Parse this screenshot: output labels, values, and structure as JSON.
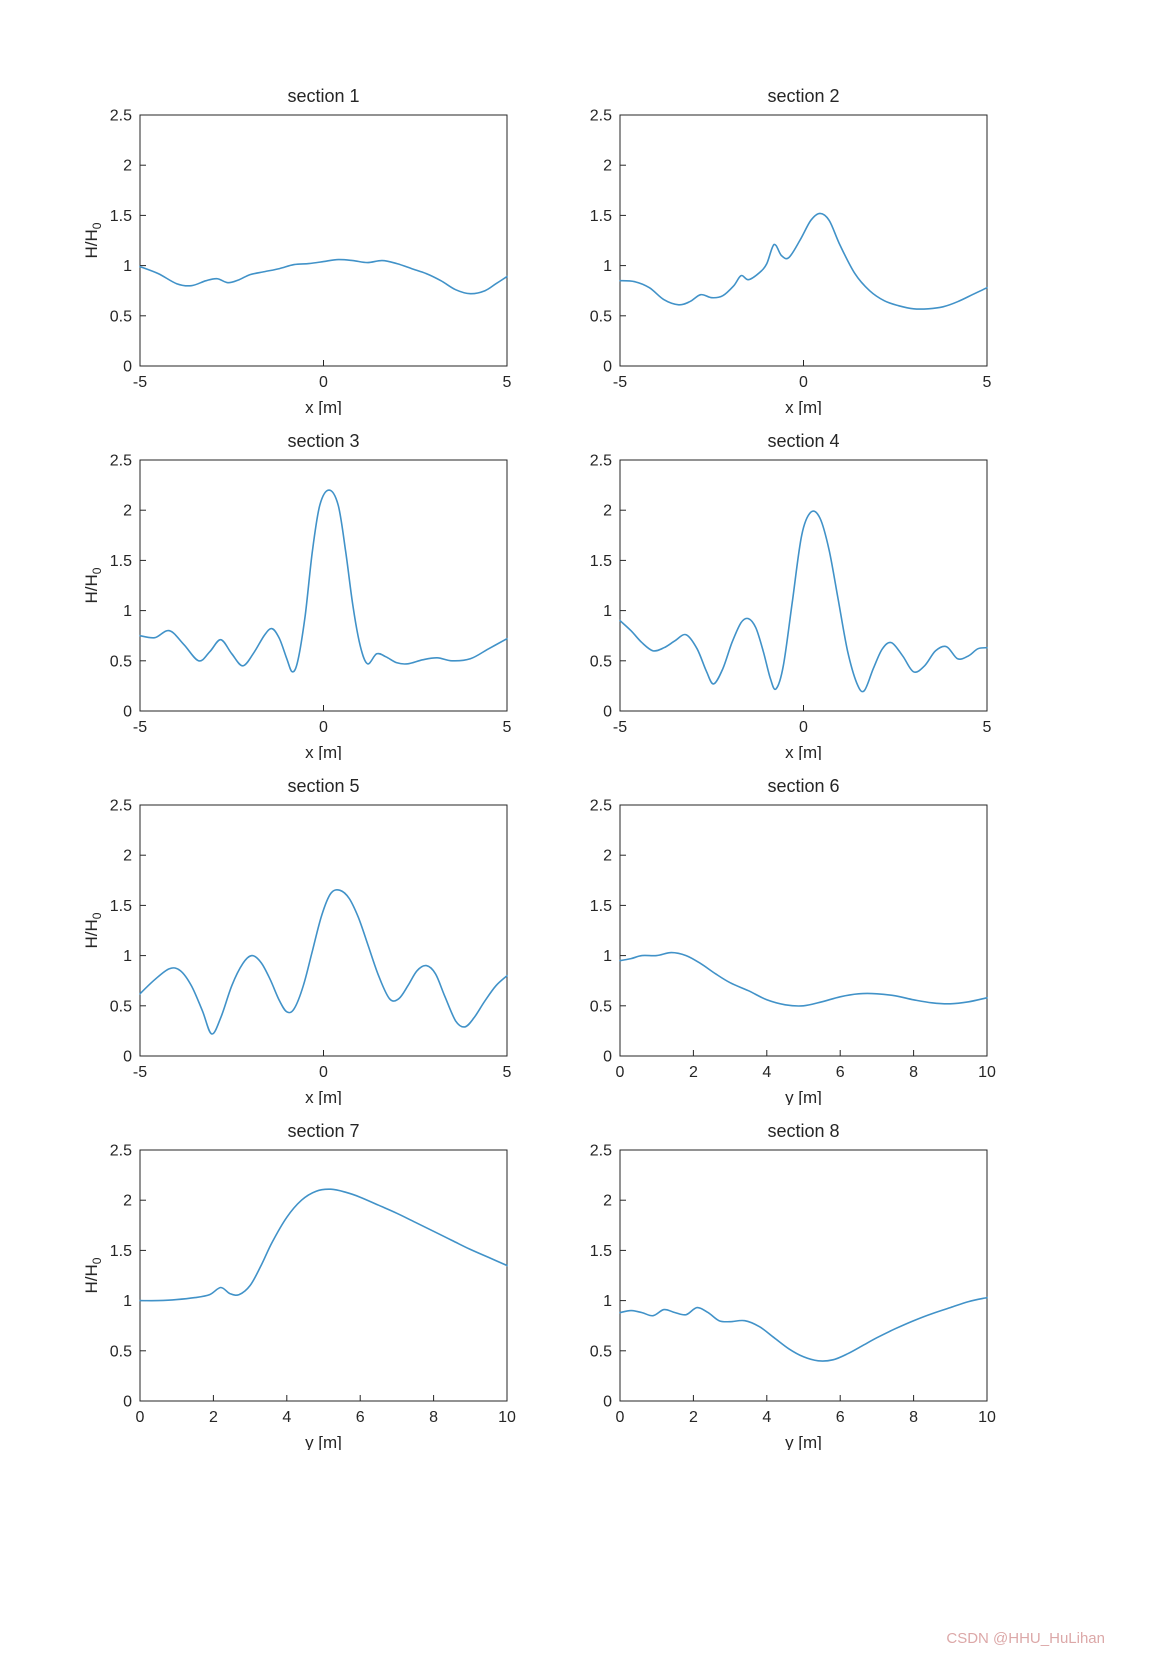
{
  "watermark": {
    "text": "CSDN @HHU_HuLihan",
    "color": "#DCA8A8"
  },
  "style": {
    "line_color": "#4192C8",
    "axis_color": "#262626",
    "background": "#ffffff"
  },
  "chart_data": [
    {
      "type": "line",
      "title": "section 1",
      "xlabel": "x [m]",
      "ylabel": "H/H_0",
      "xlim": [
        -5,
        5
      ],
      "ylim": [
        0,
        2.5
      ],
      "xticks": [
        -5,
        0,
        5
      ],
      "yticks": [
        0,
        0.5,
        1,
        1.5,
        2,
        2.5
      ],
      "x": [
        -5,
        -4.5,
        -4,
        -3.6,
        -3.2,
        -2.9,
        -2.6,
        -2.3,
        -2,
        -1.6,
        -1.2,
        -0.8,
        -0.4,
        0,
        0.4,
        0.8,
        1.2,
        1.6,
        2,
        2.4,
        2.8,
        3.2,
        3.6,
        4,
        4.4,
        4.7,
        5
      ],
      "y": [
        0.99,
        0.92,
        0.82,
        0.8,
        0.85,
        0.87,
        0.83,
        0.86,
        0.91,
        0.94,
        0.97,
        1.01,
        1.02,
        1.04,
        1.06,
        1.05,
        1.03,
        1.05,
        1.02,
        0.97,
        0.92,
        0.85,
        0.76,
        0.72,
        0.75,
        0.82,
        0.89
      ]
    },
    {
      "type": "line",
      "title": "section 2",
      "xlabel": "x [m]",
      "ylabel": "",
      "xlim": [
        -5,
        5
      ],
      "ylim": [
        0,
        2.5
      ],
      "xticks": [
        -5,
        0,
        5
      ],
      "yticks": [
        0,
        0.5,
        1,
        1.5,
        2,
        2.5
      ],
      "x": [
        -5,
        -4.6,
        -4.2,
        -3.8,
        -3.4,
        -3.1,
        -2.8,
        -2.5,
        -2.2,
        -1.9,
        -1.7,
        -1.5,
        -1.2,
        -1,
        -0.8,
        -0.6,
        -0.4,
        -0.1,
        0.2,
        0.45,
        0.7,
        1,
        1.4,
        1.8,
        2.2,
        2.6,
        3,
        3.4,
        3.8,
        4.2,
        4.6,
        5
      ],
      "y": [
        0.85,
        0.84,
        0.78,
        0.66,
        0.61,
        0.64,
        0.71,
        0.68,
        0.7,
        0.8,
        0.9,
        0.86,
        0.93,
        1.02,
        1.21,
        1.1,
        1.08,
        1.25,
        1.45,
        1.52,
        1.45,
        1.2,
        0.92,
        0.75,
        0.65,
        0.6,
        0.57,
        0.57,
        0.59,
        0.64,
        0.71,
        0.78
      ]
    },
    {
      "type": "line",
      "title": "section 3",
      "xlabel": "x [m]",
      "ylabel": "H/H_0",
      "xlim": [
        -5,
        5
      ],
      "ylim": [
        0,
        2.5
      ],
      "xticks": [
        -5,
        0,
        5
      ],
      "yticks": [
        0,
        0.5,
        1,
        1.5,
        2,
        2.5
      ],
      "x": [
        -5,
        -4.6,
        -4.2,
        -3.8,
        -3.4,
        -3.1,
        -2.8,
        -2.5,
        -2.2,
        -1.9,
        -1.6,
        -1.4,
        -1.2,
        -1,
        -0.85,
        -0.7,
        -0.5,
        -0.3,
        -0.1,
        0.15,
        0.4,
        0.6,
        0.8,
        1,
        1.2,
        1.45,
        1.7,
        2,
        2.3,
        2.7,
        3.1,
        3.5,
        4,
        4.5,
        5
      ],
      "y": [
        0.75,
        0.73,
        0.8,
        0.66,
        0.5,
        0.59,
        0.71,
        0.57,
        0.45,
        0.58,
        0.76,
        0.82,
        0.72,
        0.52,
        0.39,
        0.5,
        0.95,
        1.6,
        2.05,
        2.2,
        2.05,
        1.6,
        1.05,
        0.65,
        0.47,
        0.57,
        0.54,
        0.48,
        0.47,
        0.51,
        0.53,
        0.5,
        0.52,
        0.62,
        0.72
      ]
    },
    {
      "type": "line",
      "title": "section 4",
      "xlabel": "x [m]",
      "ylabel": "",
      "xlim": [
        -5,
        5
      ],
      "ylim": [
        0,
        2.5
      ],
      "xticks": [
        -5,
        0,
        5
      ],
      "yticks": [
        0,
        0.5,
        1,
        1.5,
        2,
        2.5
      ],
      "x": [
        -5,
        -4.7,
        -4.4,
        -4.1,
        -3.8,
        -3.5,
        -3.2,
        -2.9,
        -2.65,
        -2.45,
        -2.2,
        -1.95,
        -1.7,
        -1.5,
        -1.3,
        -1.1,
        -0.9,
        -0.75,
        -0.55,
        -0.3,
        -0.05,
        0.2,
        0.45,
        0.7,
        0.95,
        1.2,
        1.45,
        1.65,
        1.9,
        2.15,
        2.4,
        2.7,
        3,
        3.3,
        3.6,
        3.9,
        4.2,
        4.5,
        4.75,
        5
      ],
      "y": [
        0.9,
        0.8,
        0.68,
        0.6,
        0.63,
        0.7,
        0.76,
        0.62,
        0.4,
        0.27,
        0.42,
        0.68,
        0.88,
        0.92,
        0.83,
        0.6,
        0.32,
        0.22,
        0.45,
        1.1,
        1.75,
        1.98,
        1.92,
        1.6,
        1.1,
        0.6,
        0.28,
        0.2,
        0.42,
        0.62,
        0.68,
        0.55,
        0.39,
        0.45,
        0.6,
        0.64,
        0.52,
        0.55,
        0.62,
        0.63
      ]
    },
    {
      "type": "line",
      "title": "section 5",
      "xlabel": "x [m]",
      "ylabel": "H/H_0",
      "xlim": [
        -5,
        5
      ],
      "ylim": [
        0,
        2.5
      ],
      "xticks": [
        -5,
        0,
        5
      ],
      "yticks": [
        0,
        0.5,
        1,
        1.5,
        2,
        2.5
      ],
      "x": [
        -5,
        -4.6,
        -4.2,
        -3.9,
        -3.6,
        -3.3,
        -3.05,
        -2.8,
        -2.5,
        -2.2,
        -1.95,
        -1.7,
        -1.45,
        -1.2,
        -1,
        -0.8,
        -0.55,
        -0.3,
        -0.05,
        0.2,
        0.45,
        0.7,
        0.95,
        1.2,
        1.5,
        1.8,
        2.05,
        2.3,
        2.55,
        2.8,
        3.05,
        3.3,
        3.6,
        3.85,
        4.1,
        4.4,
        4.7,
        5
      ],
      "y": [
        0.62,
        0.76,
        0.87,
        0.85,
        0.7,
        0.45,
        0.22,
        0.38,
        0.7,
        0.92,
        1.0,
        0.93,
        0.76,
        0.55,
        0.44,
        0.47,
        0.7,
        1.05,
        1.4,
        1.62,
        1.65,
        1.57,
        1.38,
        1.12,
        0.8,
        0.57,
        0.57,
        0.7,
        0.85,
        0.9,
        0.82,
        0.6,
        0.35,
        0.29,
        0.38,
        0.55,
        0.7,
        0.8
      ]
    },
    {
      "type": "line",
      "title": "section 6",
      "xlabel": "y [m]",
      "ylabel": "",
      "xlim": [
        0,
        10
      ],
      "ylim": [
        0,
        2.5
      ],
      "xticks": [
        0,
        2,
        4,
        6,
        8,
        10
      ],
      "yticks": [
        0,
        0.5,
        1,
        1.5,
        2,
        2.5
      ],
      "x": [
        0,
        0.3,
        0.6,
        1,
        1.4,
        1.8,
        2.2,
        2.6,
        3,
        3.5,
        4,
        4.5,
        5,
        5.5,
        6,
        6.5,
        7,
        7.5,
        8,
        8.5,
        9,
        9.5,
        10
      ],
      "y": [
        0.95,
        0.97,
        1.0,
        1.0,
        1.03,
        1.0,
        0.92,
        0.82,
        0.73,
        0.65,
        0.56,
        0.51,
        0.5,
        0.54,
        0.59,
        0.62,
        0.62,
        0.6,
        0.56,
        0.53,
        0.52,
        0.54,
        0.58
      ]
    },
    {
      "type": "line",
      "title": "section 7",
      "xlabel": "y [m]",
      "ylabel": "H/H_0",
      "xlim": [
        0,
        10
      ],
      "ylim": [
        0,
        2.5
      ],
      "xticks": [
        0,
        2,
        4,
        6,
        8,
        10
      ],
      "yticks": [
        0,
        0.5,
        1,
        1.5,
        2,
        2.5
      ],
      "x": [
        0,
        0.5,
        1,
        1.5,
        1.9,
        2.2,
        2.45,
        2.7,
        3,
        3.3,
        3.6,
        4,
        4.4,
        4.8,
        5.2,
        5.6,
        6,
        6.5,
        7,
        7.5,
        8,
        8.5,
        9,
        9.5,
        10
      ],
      "y": [
        1.0,
        1.0,
        1.01,
        1.03,
        1.06,
        1.13,
        1.07,
        1.06,
        1.15,
        1.35,
        1.58,
        1.83,
        2.0,
        2.09,
        2.11,
        2.08,
        2.03,
        1.95,
        1.87,
        1.78,
        1.69,
        1.6,
        1.51,
        1.43,
        1.35
      ]
    },
    {
      "type": "line",
      "title": "section 8",
      "xlabel": "y [m]",
      "ylabel": "",
      "xlim": [
        0,
        10
      ],
      "ylim": [
        0,
        2.5
      ],
      "xticks": [
        0,
        2,
        4,
        6,
        8,
        10
      ],
      "yticks": [
        0,
        0.5,
        1,
        1.5,
        2,
        2.5
      ],
      "x": [
        0,
        0.3,
        0.6,
        0.9,
        1.2,
        1.5,
        1.8,
        2.1,
        2.4,
        2.7,
        3,
        3.4,
        3.8,
        4.2,
        4.6,
        5,
        5.4,
        5.8,
        6.2,
        6.6,
        7,
        7.5,
        8,
        8.5,
        9,
        9.5,
        10
      ],
      "y": [
        0.88,
        0.9,
        0.88,
        0.85,
        0.91,
        0.88,
        0.86,
        0.93,
        0.88,
        0.8,
        0.79,
        0.8,
        0.74,
        0.63,
        0.52,
        0.44,
        0.4,
        0.41,
        0.47,
        0.55,
        0.63,
        0.72,
        0.8,
        0.87,
        0.93,
        0.99,
        1.03
      ]
    }
  ]
}
